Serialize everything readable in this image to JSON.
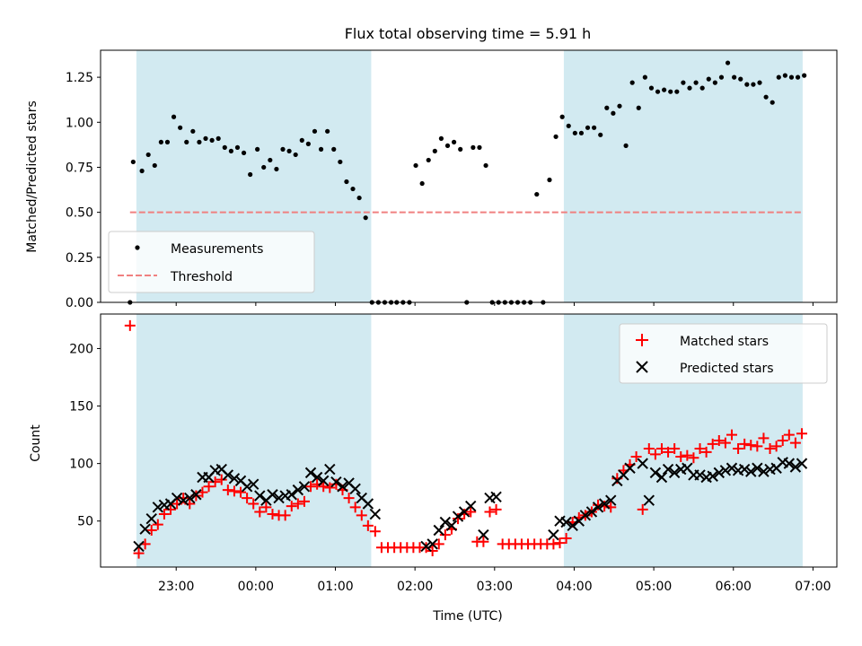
{
  "chart_data": [
    {
      "type": "scatter",
      "title": "Flux total observing time = 5.91 h",
      "xlabel": "",
      "ylabel": "Matched/Predicted stars",
      "xlim_hours": [
        -1.95,
        7.3
      ],
      "ylim": [
        0,
        1.4
      ],
      "yticks": [
        0.0,
        0.25,
        0.5,
        0.75,
        1.0,
        1.25
      ],
      "ytick_labels": [
        "0.00",
        "0.25",
        "0.50",
        "0.75",
        "1.00",
        "1.25"
      ],
      "xticks": [
        -1,
        0,
        1,
        2,
        3,
        4,
        5,
        6,
        7
      ],
      "shaded_intervals_hours": [
        [
          -1.5,
          1.45
        ],
        [
          3.87,
          6.87
        ]
      ],
      "shade_color": "#add8e6",
      "legend": {
        "position": "lower-left",
        "entries": [
          "Measurements",
          "Threshold"
        ]
      },
      "threshold": {
        "name": "Threshold",
        "y": 0.5,
        "x_range_hours": [
          -1.58,
          6.87
        ],
        "color": "#f08080",
        "style": "dashed"
      },
      "series": [
        {
          "name": "Measurements",
          "color": "#000000",
          "marker": "dot",
          "x_hours": [
            -1.58,
            -1.54,
            -1.43,
            -1.35,
            -1.27,
            -1.19,
            -1.11,
            -1.03,
            -0.95,
            -0.87,
            -0.79,
            -0.71,
            -0.63,
            -0.55,
            -0.47,
            -0.39,
            -0.31,
            -0.23,
            -0.15,
            -0.07,
            0.02,
            0.1,
            0.18,
            0.26,
            0.34,
            0.42,
            0.5,
            0.58,
            0.66,
            0.74,
            0.82,
            0.9,
            0.98,
            1.06,
            1.14,
            1.22,
            1.3,
            1.38,
            1.46,
            1.54,
            1.62,
            1.7,
            1.77,
            1.85,
            1.93,
            2.01,
            2.09,
            2.17,
            2.25,
            2.33,
            2.41,
            2.49,
            2.57,
            2.65,
            2.73,
            2.81,
            2.89,
            2.97,
            3.05,
            3.13,
            3.21,
            3.29,
            3.37,
            3.45,
            3.53,
            3.61,
            3.69,
            3.77,
            3.85,
            3.93,
            4.01,
            4.09,
            4.17,
            4.25,
            4.33,
            4.41,
            4.49,
            4.57,
            4.65,
            4.73,
            4.81,
            4.89,
            4.97,
            5.05,
            5.13,
            5.21,
            5.29,
            5.37,
            5.45,
            5.53,
            5.61,
            5.69,
            5.77,
            5.85,
            5.93,
            6.01,
            6.09,
            6.17,
            6.25,
            6.33,
            6.41,
            6.49,
            6.57,
            6.65,
            6.73,
            6.81,
            6.89
          ],
          "y": [
            0.0,
            0.78,
            0.73,
            0.82,
            0.76,
            0.89,
            0.89,
            1.03,
            0.97,
            0.89,
            0.95,
            0.89,
            0.91,
            0.9,
            0.91,
            0.86,
            0.84,
            0.86,
            0.83,
            0.71,
            0.85,
            0.75,
            0.79,
            0.74,
            0.85,
            0.84,
            0.82,
            0.9,
            0.88,
            0.95,
            0.85,
            0.95,
            0.85,
            0.78,
            0.67,
            0.63,
            0.58,
            0.47,
            0.0,
            0.0,
            0.0,
            0.0,
            0.0,
            0.0,
            0.0,
            0.76,
            0.66,
            0.79,
            0.84,
            0.91,
            0.87,
            0.89,
            0.85,
            0.0,
            0.86,
            0.86,
            0.76,
            0.0,
            0.0,
            0.0,
            0.0,
            0.0,
            0.0,
            0.0,
            0.6,
            0.0,
            0.68,
            0.92,
            1.03,
            0.98,
            0.94,
            0.94,
            0.97,
            0.97,
            0.93,
            1.08,
            1.05,
            1.09,
            0.87,
            1.22,
            1.08,
            1.25,
            1.19,
            1.17,
            1.18,
            1.17,
            1.17,
            1.22,
            1.19,
            1.22,
            1.19,
            1.24,
            1.22,
            1.25,
            1.33,
            1.25,
            1.24,
            1.21,
            1.21,
            1.22,
            1.14,
            1.11,
            1.25,
            1.26,
            1.25,
            1.25,
            1.26
          ]
        }
      ]
    },
    {
      "type": "scatter",
      "title": "",
      "xlabel": "Time (UTC)",
      "ylabel": "Count",
      "xlim_hours": [
        -1.95,
        7.3
      ],
      "ylim": [
        10,
        230
      ],
      "yticks": [
        50,
        100,
        150,
        200
      ],
      "ytick_labels": [
        "50",
        "100",
        "150",
        "200"
      ],
      "xticks": [
        -1,
        0,
        1,
        2,
        3,
        4,
        5,
        6,
        7
      ],
      "xtick_labels": [
        "23:00",
        "00:00",
        "01:00",
        "02:00",
        "03:00",
        "04:00",
        "05:00",
        "06:00",
        "07:00"
      ],
      "shaded_intervals_hours": [
        [
          -1.5,
          1.45
        ],
        [
          3.87,
          6.87
        ]
      ],
      "shade_color": "#add8e6",
      "legend": {
        "position": "top-right",
        "entries": [
          "Matched stars",
          "Predicted stars"
        ]
      },
      "series": [
        {
          "name": "Matched stars",
          "color": "#ff0000",
          "marker": "plus",
          "x_hours": [
            -1.58,
            -1.47,
            -1.39,
            -1.31,
            -1.23,
            -1.15,
            -1.07,
            -0.99,
            -0.91,
            -0.83,
            -0.75,
            -0.67,
            -0.59,
            -0.51,
            -0.43,
            -0.35,
            -0.27,
            -0.19,
            -0.11,
            -0.03,
            0.05,
            0.13,
            0.21,
            0.29,
            0.37,
            0.45,
            0.53,
            0.61,
            0.69,
            0.77,
            0.85,
            0.93,
            1.01,
            1.09,
            1.17,
            1.25,
            1.33,
            1.41,
            1.5,
            1.58,
            1.66,
            1.74,
            1.82,
            1.9,
            1.98,
            2.06,
            2.14,
            2.22,
            2.3,
            2.38,
            2.46,
            2.54,
            2.62,
            2.7,
            2.78,
            2.86,
            2.94,
            3.02,
            3.1,
            3.18,
            3.26,
            3.34,
            3.42,
            3.5,
            3.58,
            3.66,
            3.74,
            3.82,
            3.9,
            3.98,
            4.06,
            4.14,
            4.22,
            4.3,
            4.38,
            4.46,
            4.54,
            4.62,
            4.7,
            4.78,
            4.86,
            4.94,
            5.02,
            5.1,
            5.18,
            5.26,
            5.34,
            5.42,
            5.5,
            5.58,
            5.66,
            5.74,
            5.82,
            5.9,
            5.98,
            6.06,
            6.14,
            6.22,
            6.3,
            6.38,
            6.46,
            6.54,
            6.62,
            6.7,
            6.78,
            6.86
          ],
          "y": [
            220,
            22,
            30,
            42,
            47,
            56,
            60,
            65,
            70,
            65,
            72,
            75,
            80,
            84,
            86,
            77,
            76,
            75,
            70,
            65,
            58,
            62,
            56,
            55,
            55,
            63,
            65,
            67,
            80,
            82,
            80,
            79,
            82,
            77,
            70,
            62,
            55,
            46,
            41,
            27,
            27,
            27,
            27,
            27,
            27,
            27,
            27,
            24,
            30,
            38,
            43,
            52,
            56,
            58,
            32,
            32,
            58,
            60,
            30,
            30,
            30,
            30,
            30,
            30,
            30,
            30,
            30,
            31,
            35,
            49,
            53,
            55,
            58,
            64,
            63,
            62,
            87,
            94,
            99,
            106,
            60,
            113,
            108,
            113,
            110,
            113,
            106,
            107,
            105,
            113,
            110,
            117,
            120,
            118,
            125,
            113,
            117,
            116,
            115,
            122,
            113,
            115,
            120,
            125,
            118,
            126
          ]
        },
        {
          "name": "Predicted stars",
          "color": "#000000",
          "marker": "x",
          "x_hours": [
            -1.47,
            -1.39,
            -1.31,
            -1.23,
            -1.15,
            -1.07,
            -0.99,
            -0.91,
            -0.83,
            -0.75,
            -0.67,
            -0.59,
            -0.51,
            -0.43,
            -0.35,
            -0.27,
            -0.19,
            -0.11,
            -0.03,
            0.05,
            0.13,
            0.21,
            0.29,
            0.37,
            0.45,
            0.53,
            0.61,
            0.69,
            0.77,
            0.85,
            0.93,
            1.01,
            1.09,
            1.17,
            1.25,
            1.33,
            1.41,
            1.5,
            2.14,
            2.22,
            2.3,
            2.38,
            2.46,
            2.54,
            2.62,
            2.7,
            2.86,
            2.94,
            3.02,
            3.74,
            3.82,
            3.9,
            3.98,
            4.06,
            4.14,
            4.22,
            4.3,
            4.38,
            4.46,
            4.54,
            4.62,
            4.7,
            4.86,
            4.94,
            5.02,
            5.1,
            5.18,
            5.26,
            5.34,
            5.42,
            5.5,
            5.58,
            5.66,
            5.74,
            5.82,
            5.9,
            5.98,
            6.06,
            6.14,
            6.22,
            6.3,
            6.38,
            6.46,
            6.54,
            6.62,
            6.7,
            6.78,
            6.86
          ],
          "y": [
            28,
            43,
            52,
            62,
            64,
            65,
            70,
            68,
            70,
            73,
            88,
            88,
            94,
            95,
            90,
            87,
            85,
            80,
            82,
            72,
            68,
            73,
            70,
            72,
            73,
            77,
            80,
            92,
            88,
            85,
            95,
            84,
            80,
            83,
            78,
            70,
            65,
            56,
            28,
            30,
            42,
            49,
            46,
            54,
            58,
            63,
            38,
            70,
            71,
            38,
            50,
            49,
            46,
            50,
            55,
            58,
            62,
            65,
            68,
            85,
            90,
            96,
            100,
            68,
            92,
            88,
            95,
            92,
            95,
            96,
            90,
            90,
            88,
            89,
            92,
            94,
            96,
            94,
            95,
            93,
            96,
            93,
            95,
            96,
            101,
            100,
            97,
            100
          ]
        }
      ]
    }
  ]
}
